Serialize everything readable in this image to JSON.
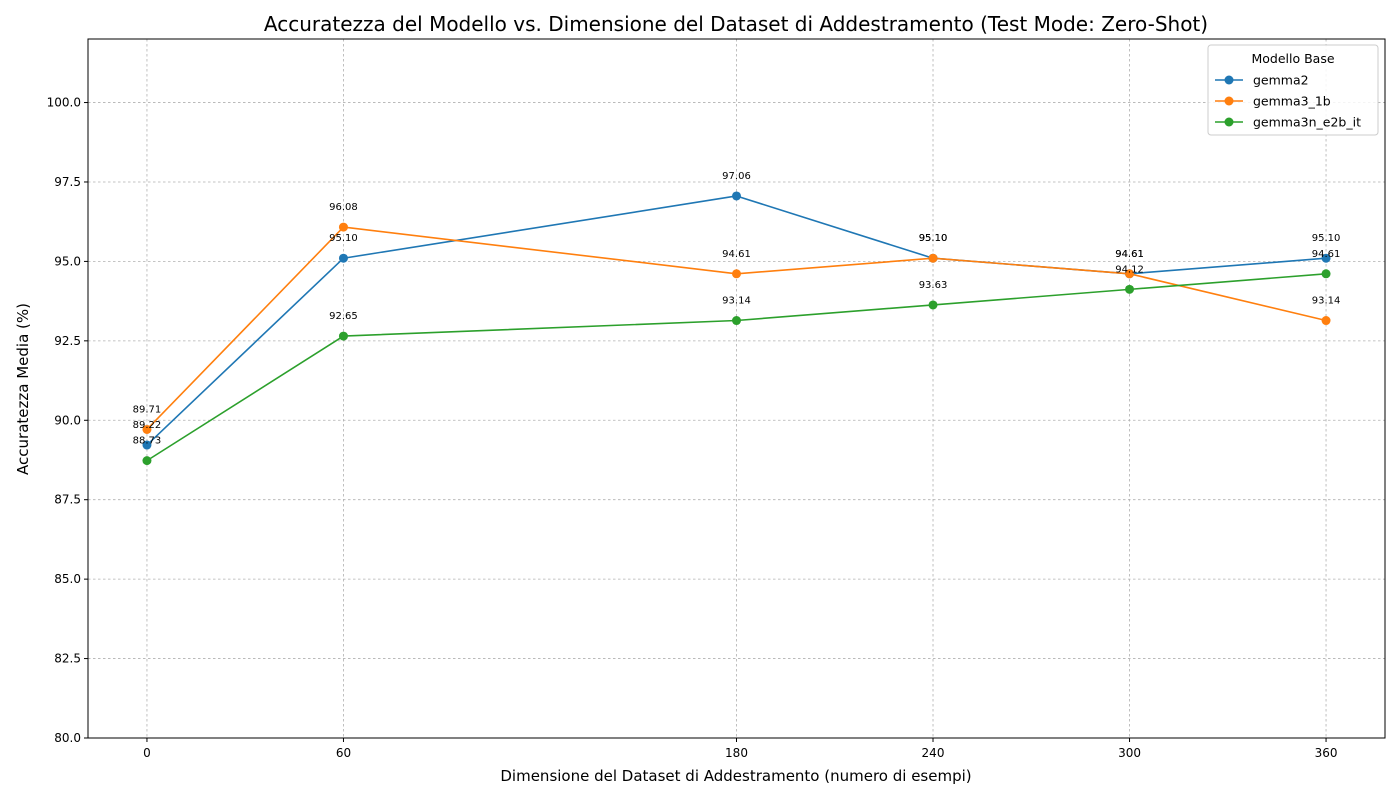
{
  "chart_data": {
    "type": "line",
    "title": "Accuratezza del Modello vs. Dimensione del Dataset di Addestramento (Test Mode: Zero-Shot)",
    "xlabel": "Dimensione del Dataset di Addestramento (numero di esempi)",
    "ylabel": "Accuratezza Media (%)",
    "x": [
      0,
      60,
      180,
      240,
      300,
      360
    ],
    "xticks": [
      "0",
      "60",
      "180",
      "240",
      "300",
      "360"
    ],
    "xlim": [
      -18,
      378
    ],
    "ylim": [
      80,
      102
    ],
    "yticks": [
      "80.0",
      "82.5",
      "85.0",
      "87.5",
      "90.0",
      "92.5",
      "95.0",
      "97.5",
      "100.0"
    ],
    "grid": true,
    "legend": {
      "title": "Modello Base",
      "position": "top-right"
    },
    "series": [
      {
        "name": "gemma2",
        "color": "#1f77b4",
        "values": [
          89.22,
          95.1,
          97.06,
          95.1,
          94.61,
          95.1
        ],
        "labels": [
          "89.22",
          "95.10",
          "97.06",
          "95.10",
          "94.61",
          "95.10"
        ]
      },
      {
        "name": "gemma3_1b",
        "color": "#ff7f0e",
        "values": [
          89.71,
          96.08,
          94.61,
          95.1,
          94.61,
          93.14
        ],
        "labels": [
          "89.71",
          "96.08",
          "94.61",
          "95.10",
          "94.61",
          "93.14"
        ]
      },
      {
        "name": "gemma3n_e2b_it",
        "color": "#2ca02c",
        "values": [
          88.73,
          92.65,
          93.14,
          93.63,
          94.12,
          94.61
        ],
        "labels": [
          "88.73",
          "92.65",
          "93.14",
          "93.63",
          "94.12",
          "94.61"
        ]
      }
    ]
  }
}
